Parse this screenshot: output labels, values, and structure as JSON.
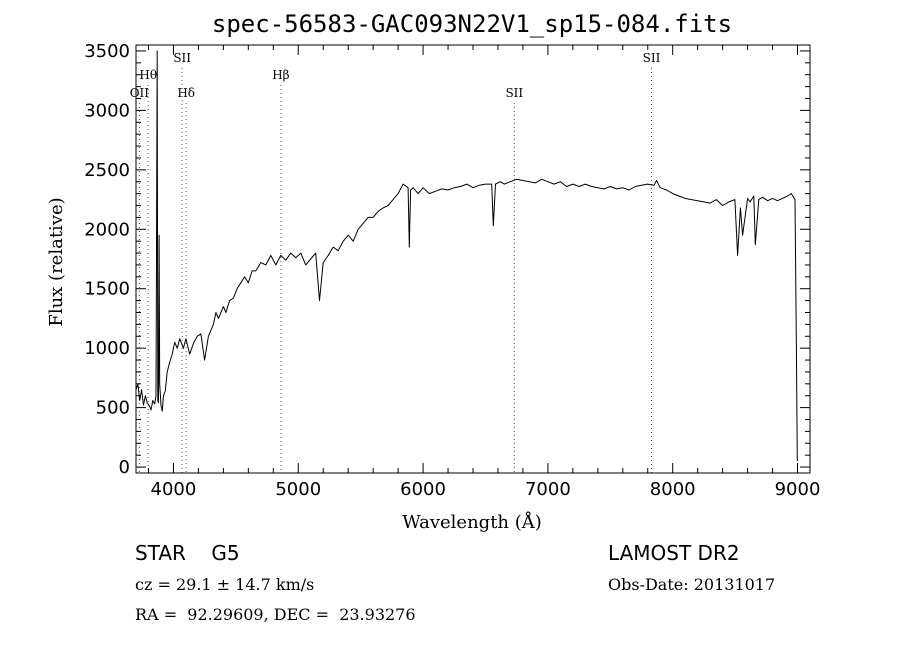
{
  "chart_data": {
    "type": "line",
    "title": "spec-56583-GAC093N22V1_sp15-084.fits",
    "xlabel": "Wavelength (Å)",
    "ylabel": "Flux (relative)",
    "xlim": [
      3700,
      9100
    ],
    "ylim": [
      -50,
      3550
    ],
    "xticks": [
      4000,
      5000,
      6000,
      7000,
      8000,
      9000
    ],
    "yticks": [
      0,
      500,
      1000,
      1500,
      2000,
      2500,
      3000,
      3500
    ],
    "grid": false,
    "series": [
      {
        "x": [
          3700,
          3715,
          3730,
          3745,
          3760,
          3775,
          3790,
          3805,
          3820,
          3835,
          3850,
          3860,
          3870,
          3875,
          3880,
          3885,
          3890,
          3900,
          3910,
          3920,
          3935,
          3950,
          3970,
          3990,
          4010,
          4030,
          4050,
          4080,
          4100,
          4130,
          4160,
          4190,
          4220,
          4250,
          4280,
          4300,
          4320,
          4340,
          4360,
          4380,
          4400,
          4420,
          4450,
          4480,
          4510,
          4540,
          4570,
          4600,
          4630,
          4660,
          4700,
          4740,
          4780,
          4820,
          4860,
          4900,
          4940,
          4980,
          5020,
          5060,
          5100,
          5140,
          5170,
          5200,
          5240,
          5280,
          5320,
          5360,
          5400,
          5440,
          5480,
          5520,
          5560,
          5600,
          5640,
          5680,
          5720,
          5760,
          5800,
          5840,
          5880,
          5890,
          5900,
          5920,
          5960,
          6000,
          6050,
          6100,
          6150,
          6200,
          6250,
          6300,
          6350,
          6400,
          6450,
          6500,
          6550,
          6563,
          6580,
          6620,
          6650,
          6700,
          6750,
          6800,
          6850,
          6900,
          6950,
          7000,
          7050,
          7100,
          7150,
          7200,
          7250,
          7300,
          7350,
          7400,
          7450,
          7500,
          7550,
          7600,
          7650,
          7700,
          7750,
          7800,
          7850,
          7870,
          7900,
          7950,
          8000,
          8050,
          8100,
          8150,
          8200,
          8250,
          8300,
          8350,
          8400,
          8450,
          8498,
          8520,
          8542,
          8560,
          8600,
          8620,
          8650,
          8662,
          8690,
          8720,
          8760,
          8800,
          8840,
          8880,
          8920,
          8950,
          8980,
          8990,
          8998
        ],
        "y": [
          650,
          700,
          560,
          650,
          520,
          600,
          540,
          520,
          480,
          560,
          530,
          600,
          3500,
          560,
          540,
          1950,
          700,
          520,
          470,
          600,
          640,
          800,
          880,
          950,
          1050,
          1000,
          1080,
          1000,
          1080,
          950,
          1040,
          1100,
          1120,
          900,
          1100,
          1150,
          1200,
          1300,
          1250,
          1300,
          1350,
          1300,
          1400,
          1420,
          1500,
          1550,
          1600,
          1550,
          1650,
          1650,
          1720,
          1700,
          1780,
          1700,
          1780,
          1740,
          1800,
          1760,
          1800,
          1700,
          1750,
          1800,
          1400,
          1720,
          1780,
          1850,
          1820,
          1900,
          1950,
          1900,
          2000,
          2050,
          2100,
          2100,
          2150,
          2180,
          2200,
          2250,
          2300,
          2380,
          2350,
          1850,
          2330,
          2350,
          2300,
          2350,
          2300,
          2320,
          2340,
          2330,
          2350,
          2360,
          2380,
          2350,
          2370,
          2380,
          2380,
          2030,
          2380,
          2400,
          2380,
          2400,
          2420,
          2410,
          2400,
          2390,
          2420,
          2400,
          2380,
          2400,
          2360,
          2380,
          2360,
          2380,
          2360,
          2350,
          2340,
          2360,
          2340,
          2350,
          2330,
          2360,
          2370,
          2380,
          2370,
          2410,
          2350,
          2330,
          2300,
          2280,
          2260,
          2250,
          2240,
          2230,
          2220,
          2250,
          2200,
          2230,
          2250,
          1780,
          2180,
          1950,
          2260,
          2230,
          2280,
          1870,
          2250,
          2270,
          2240,
          2260,
          2240,
          2260,
          2280,
          2300,
          2250,
          1100,
          50
        ]
      }
    ],
    "line_labels": [
      {
        "name": "OII",
        "wavelength": 3727,
        "row": 3
      },
      {
        "name": "Hθ",
        "wavelength": 3798,
        "row": 2
      },
      {
        "name": "SII",
        "wavelength": 4070,
        "row": 1
      },
      {
        "name": "Hδ",
        "wavelength": 4102,
        "row": 3
      },
      {
        "name": "Hβ",
        "wavelength": 4861,
        "row": 2
      },
      {
        "name": "SII",
        "wavelength": 6731,
        "row": 3
      },
      {
        "name": "SII",
        "wavelength": 7830,
        "row": 1
      }
    ]
  },
  "info": {
    "class_text": "STAR    G5",
    "survey": "LAMOST DR2",
    "cz": "cz = 29.1 ± 14.7 km/s",
    "obs_date": "Obs-Date: 20131017",
    "radec": "RA =  92.29609, DEC =  23.93276"
  }
}
